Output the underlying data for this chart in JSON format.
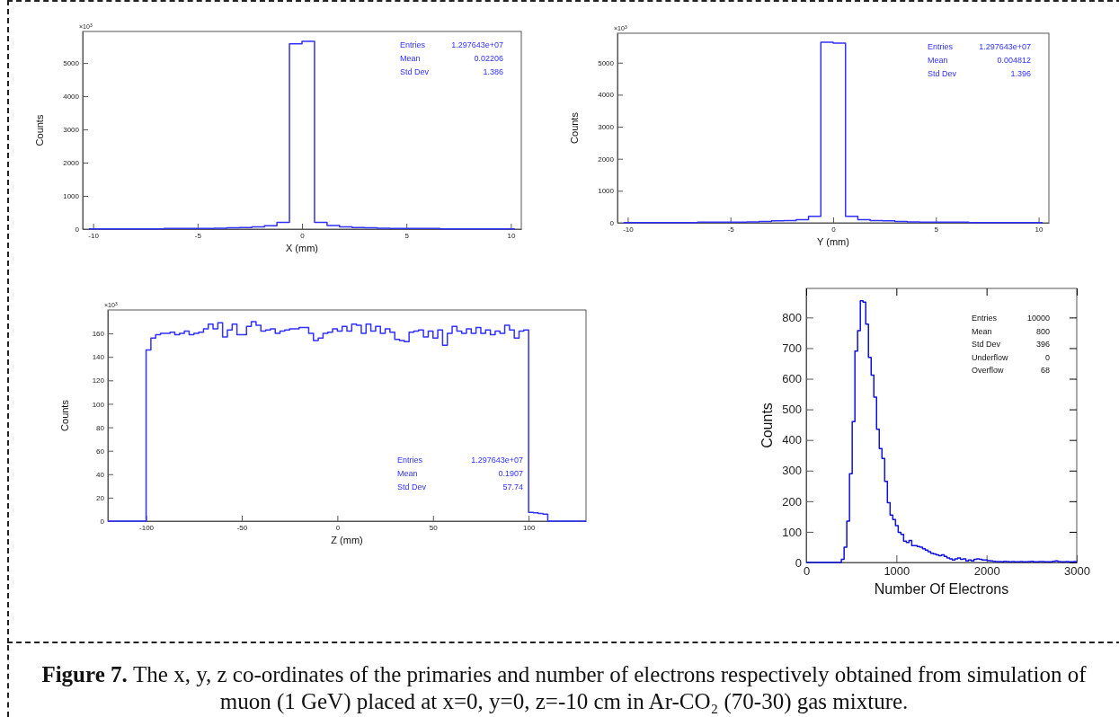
{
  "chart_data": [
    {
      "type": "histogram",
      "xlabel": "X (mm)",
      "ylabel": "Counts",
      "xlim": [
        -10.5,
        10.5
      ],
      "ylim": [
        0,
        5950
      ],
      "xticks": [
        -10,
        -5,
        0,
        5,
        10
      ],
      "yticks": [
        0,
        1000,
        2000,
        3000,
        4000,
        5000
      ],
      "bins": [
        -10.2,
        -9.6,
        -9,
        -8.4,
        -7.8,
        -7.2,
        -6.6,
        -6,
        -5.4,
        -4.8,
        -4.2,
        -3.6,
        -3,
        -2.4,
        -1.8,
        -1.2,
        -0.6,
        0,
        0.6,
        1.2,
        1.8,
        2.4,
        3,
        3.6,
        4.2,
        4.8,
        5.4,
        6,
        6.6,
        7.2,
        7.8,
        8.4,
        9,
        9.6,
        10.2
      ],
      "values": [
        10,
        10,
        10,
        10,
        10,
        10,
        20,
        20,
        20,
        20,
        30,
        40,
        50,
        70,
        100,
        200,
        5580,
        5650,
        200,
        110,
        70,
        50,
        40,
        30,
        20,
        20,
        20,
        20,
        10,
        10,
        10,
        10,
        10,
        10
      ],
      "color": "#3030ff",
      "annotations": [
        "×10$^{3}$",
        "Entries",
        "1.297643e+07",
        "Mean",
        "0.02206",
        "Std Dev",
        "1.386"
      ]
    },
    {
      "type": "histogram",
      "xlabel": "Y (mm)",
      "ylabel": "Counts",
      "xlim": [
        -10.5,
        10.5
      ],
      "ylim": [
        0,
        5920
      ],
      "xticks": [
        -10,
        -5,
        0,
        5,
        10
      ],
      "yticks": [
        0,
        1000,
        2000,
        3000,
        4000,
        5000
      ],
      "bins": [
        -10.2,
        -9.6,
        -9,
        -8.4,
        -7.8,
        -7.2,
        -6.6,
        -6,
        -5.4,
        -4.8,
        -4.2,
        -3.6,
        -3,
        -2.4,
        -1.8,
        -1.2,
        -0.6,
        0,
        0.6,
        1.2,
        1.8,
        2.4,
        3,
        3.6,
        4.2,
        4.8,
        5.4,
        6,
        6.6,
        7.2,
        7.8,
        8.4,
        9,
        9.6,
        10.2
      ],
      "values": [
        10,
        10,
        10,
        10,
        10,
        10,
        20,
        20,
        20,
        20,
        30,
        40,
        60,
        70,
        100,
        200,
        5640,
        5610,
        200,
        100,
        70,
        60,
        40,
        30,
        20,
        20,
        20,
        20,
        10,
        10,
        10,
        10,
        10,
        10
      ],
      "color": "#3030ff",
      "annotations": [
        "×10$^{3}$",
        "Entries",
        "1.297643e+07",
        "Mean",
        "0.004812",
        "Std Dev",
        "1.396"
      ]
    },
    {
      "type": "histogram",
      "xlabel": "Z (mm)",
      "ylabel": "Counts",
      "xlim": [
        -120,
        130
      ],
      "ylim": [
        0,
        180
      ],
      "xticks": [
        -100,
        -50,
        0,
        50,
        100
      ],
      "yticks": [
        0,
        20,
        40,
        60,
        80,
        100,
        120,
        140,
        160
      ],
      "bins": [
        -120,
        -100,
        -97.5,
        -95,
        -92.5,
        -90,
        -87.5,
        -85,
        -82.5,
        -80,
        -77.5,
        -75,
        -72.5,
        -70,
        -67.5,
        -65,
        -62.5,
        -60,
        -57.5,
        -55,
        -52.5,
        -50,
        -47.5,
        -45,
        -42.5,
        -40,
        -37.5,
        -35,
        -32.5,
        -30,
        -27.5,
        -25,
        -22.5,
        -20,
        -17.5,
        -15,
        -12.5,
        -10,
        -7.5,
        -5,
        -2.5,
        0,
        2.5,
        5,
        7.5,
        10,
        12.5,
        15,
        17.5,
        20,
        22.5,
        25,
        27.5,
        30,
        32.5,
        35,
        37.5,
        40,
        42.5,
        45,
        47.5,
        50,
        52.5,
        55,
        57.5,
        60,
        62.5,
        65,
        67.5,
        70,
        72.5,
        75,
        77.5,
        80,
        82.5,
        85,
        87.5,
        90,
        92.5,
        95,
        97.5,
        100,
        102.5,
        105,
        107.5,
        110,
        130
      ],
      "values": [
        0,
        146,
        156,
        159,
        160,
        160,
        161,
        159,
        160,
        162,
        159,
        160,
        161,
        164,
        168,
        164,
        169,
        157,
        163,
        168,
        159,
        159,
        166,
        170,
        167,
        162,
        163,
        164,
        160,
        162,
        163,
        164,
        164,
        165,
        165,
        160,
        154,
        156,
        160,
        161,
        164,
        162,
        166,
        162,
        168,
        167,
        160,
        168,
        162,
        166,
        160,
        164,
        161,
        155,
        154,
        153,
        161,
        162,
        163,
        157,
        162,
        156,
        163,
        150,
        160,
        166,
        162,
        160,
        164,
        160,
        165,
        160,
        163,
        159,
        162,
        160,
        167,
        163,
        156,
        162,
        163,
        7.5,
        7,
        6.5,
        6,
        0
      ],
      "color": "#3030ff",
      "annotations": [
        "×10$^{3}$",
        "Entries",
        "1.297643e+07",
        "Mean",
        "0.1907",
        "Std Dev",
        "57.74"
      ]
    },
    {
      "type": "histogram",
      "xlabel": "Number Of Electrons",
      "ylabel": "Counts",
      "xlim": [
        0,
        3000
      ],
      "ylim": [
        0,
        895
      ],
      "xticks": [
        0,
        1000,
        2000,
        3000
      ],
      "yticks": [
        0,
        100,
        200,
        300,
        400,
        500,
        600,
        700,
        800
      ],
      "bins": [
        0,
        390,
        420,
        450,
        480,
        510,
        540,
        570,
        600,
        630,
        660,
        690,
        720,
        750,
        780,
        810,
        840,
        870,
        900,
        930,
        960,
        990,
        1020,
        1050,
        1080,
        1110,
        1140,
        1170,
        1200,
        1230,
        1260,
        1290,
        1320,
        1350,
        1380,
        1410,
        1440,
        1470,
        1500,
        1530,
        1560,
        1590,
        1620,
        1650,
        1680,
        1710,
        1740,
        1770,
        1800,
        1830,
        1860,
        1890,
        1920,
        1950,
        1980,
        2010,
        2040,
        2070,
        2100,
        2130,
        2160,
        2190,
        2220,
        2250,
        2280,
        2310,
        2340,
        2370,
        2400,
        2430,
        2460,
        2490,
        2520,
        2550,
        2580,
        2610,
        2640,
        2670,
        2700,
        2730,
        2760,
        2790,
        2820,
        2850,
        2880,
        2910,
        2940,
        2970,
        3000
      ],
      "values": [
        0,
        10,
        50,
        135,
        290,
        460,
        690,
        757,
        855,
        850,
        778,
        670,
        612,
        540,
        435,
        372,
        340,
        265,
        195,
        155,
        140,
        120,
        98,
        92,
        70,
        65,
        72,
        55,
        55,
        52,
        50,
        45,
        40,
        35,
        30,
        28,
        25,
        22,
        25,
        20,
        15,
        12,
        8,
        12,
        15,
        10,
        12,
        5,
        8,
        5,
        10,
        12,
        10,
        8,
        8,
        6,
        5,
        4,
        3,
        3,
        2,
        4,
        3,
        2,
        3,
        2,
        2,
        3,
        2,
        2,
        3,
        4,
        2,
        2,
        3,
        3,
        2,
        2,
        2,
        4,
        5,
        3,
        2,
        2,
        3,
        2,
        2,
        3
      ],
      "color": "#1010e0",
      "annotations": [
        "Entries",
        "10000",
        "Mean",
        "800",
        "Std Dev",
        "396",
        "Underflow",
        "0",
        "Overflow",
        "68"
      ]
    },
    {
      "type": "other",
      "annotations": [
        "Figure 7.",
        "The x, y, z co-ordinates of the primaries and number of electrons respectively obtained from simulation of muon (1 GeV) placed at x=0, y=0, z=-10 cm in Ar-CO₂ (70-30) gas mixture."
      ]
    }
  ]
}
